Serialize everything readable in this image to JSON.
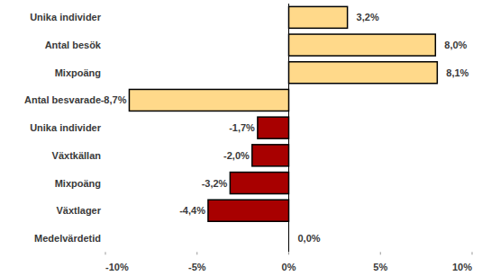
{
  "chart_data": {
    "type": "bar",
    "orientation": "horizontal",
    "categories": [
      "Unika individer",
      "Antal besök",
      "Mixpoäng",
      "Antal besvarade",
      "Unika individer",
      "Växtkällan",
      "Mixpoäng",
      "Växtlager",
      "Medelvärdetid"
    ],
    "values": [
      3.2,
      8.0,
      8.1,
      -8.7,
      -1.7,
      -2.0,
      -3.2,
      -4.4,
      0.0
    ],
    "value_labels": [
      "3,2%",
      "8,0%",
      "8,1%",
      "-8,7%",
      "-1,7%",
      "-2,0%",
      "-3,2%",
      "-4,4%",
      "0,0%"
    ],
    "colors": [
      "#ffd98a",
      "#ffd98a",
      "#ffd98a",
      "#ffd98a",
      "#a80000",
      "#a80000",
      "#a80000",
      "#a80000",
      "#a80000"
    ],
    "xlim": [
      -10,
      10
    ],
    "xticks": [
      {
        "value": -10,
        "label": "-10%"
      },
      {
        "value": -5,
        "label": "-5%"
      },
      {
        "value": 0,
        "label": "0%"
      },
      {
        "value": 5,
        "label": "5%"
      },
      {
        "value": 10,
        "label": "10%"
      }
    ],
    "data_labels": true,
    "grid": false
  }
}
